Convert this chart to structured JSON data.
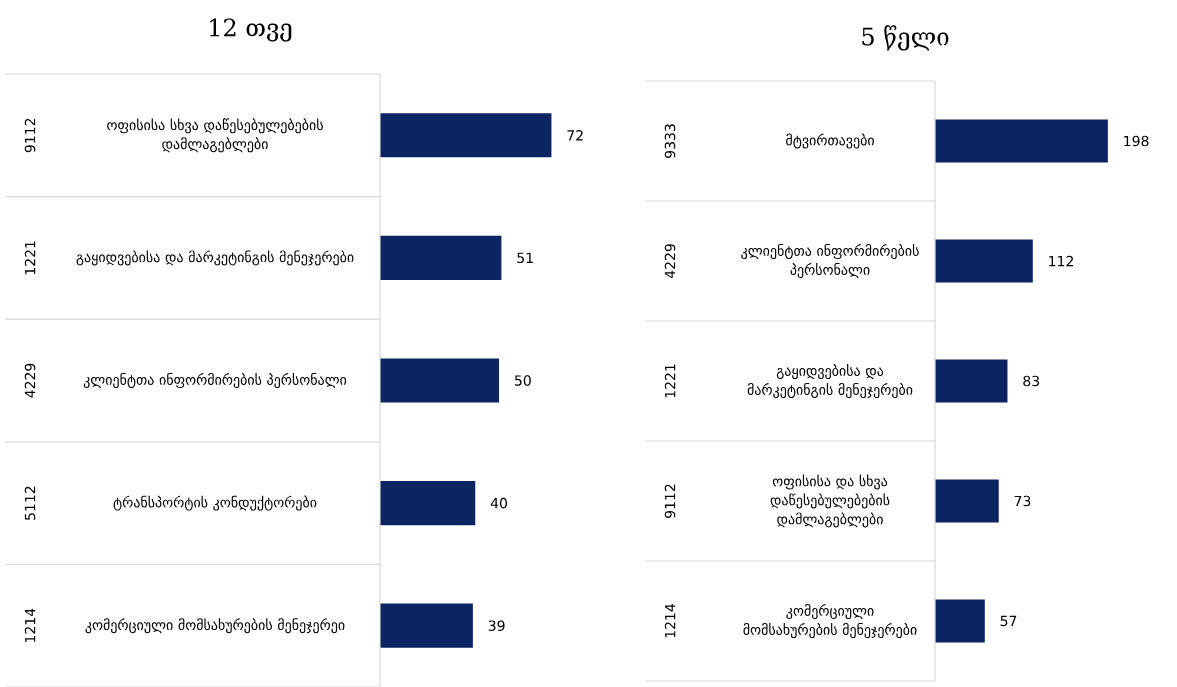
{
  "chart_data": [
    {
      "type": "bar",
      "orientation": "horizontal",
      "title": "12 თვე",
      "data_labels": true,
      "color": "#0c2461",
      "categories": [
        "ოფისისა სხვა დაწესებულებების დამლაგებლები",
        "გაყიდვებისა და მარკეტინგის მენეჯერები",
        "კლიენტთა ინფორმირების პერსონალი",
        "ტრანსპორტის კონდუქტორები",
        "კომერციული მომსახურების მენეჯერეი"
      ],
      "values": [
        72,
        51,
        50,
        40,
        39
      ],
      "annotations": [
        "9112",
        "1221",
        "4229",
        "5112",
        "1214"
      ]
    },
    {
      "type": "bar",
      "orientation": "horizontal",
      "title": "5 წელი",
      "data_labels": true,
      "color": "#0c2461",
      "categories": [
        "მტვირთავები",
        "კლიენტთა ინფორმირების პერსონალი",
        "გაყიდვებისა და მარკეტინგის მენეჯერები",
        "ოფისისა და სხვა დაწესებულებების დამლაგებლები",
        "კომერციული მომსახურების მენეჯერები"
      ],
      "values": [
        198,
        112,
        83,
        73,
        57
      ],
      "annotations": [
        "9333",
        "4229",
        "1221",
        "9112",
        "1214"
      ]
    }
  ]
}
